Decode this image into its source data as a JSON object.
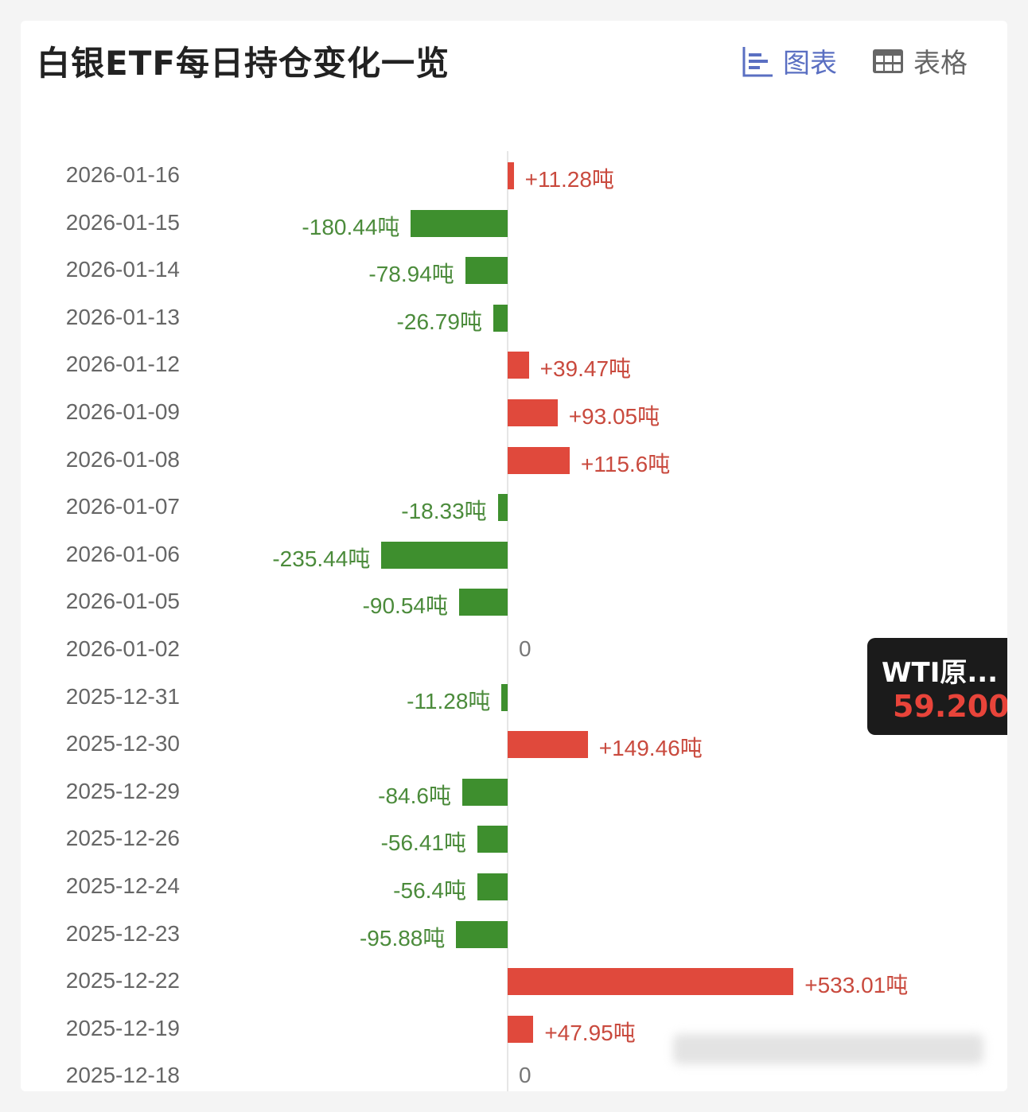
{
  "header": {
    "title": "白银ETF每日持仓变化一览",
    "tab_chart": "图表",
    "tab_table": "表格",
    "active_tab": "chart"
  },
  "tooltip": {
    "name": "WTI原...",
    "value": "59.200"
  },
  "colors": {
    "positive": "#e0493c",
    "negative": "#3e8f2e",
    "positive_text": "#c94a3e",
    "negative_text": "#4b8b3b",
    "accent": "#5a6fc2"
  },
  "chart_data": {
    "type": "bar",
    "orientation": "horizontal",
    "unit": "吨",
    "categories": [
      "2026-01-16",
      "2026-01-15",
      "2026-01-14",
      "2026-01-13",
      "2026-01-12",
      "2026-01-09",
      "2026-01-08",
      "2026-01-07",
      "2026-01-06",
      "2026-01-05",
      "2026-01-02",
      "2025-12-31",
      "2025-12-30",
      "2025-12-29",
      "2025-12-26",
      "2025-12-24",
      "2025-12-23",
      "2025-12-22",
      "2025-12-19",
      "2025-12-18"
    ],
    "values": [
      11.28,
      -180.44,
      -78.94,
      -26.79,
      39.47,
      93.05,
      115.6,
      -18.33,
      -235.44,
      -90.54,
      0,
      -11.28,
      149.46,
      -84.6,
      -56.41,
      -56.4,
      -95.88,
      533.01,
      47.95,
      0
    ],
    "labels": [
      "+11.28吨",
      "-180.44吨",
      "-78.94吨",
      "-26.79吨",
      "+39.47吨",
      "+93.05吨",
      "+115.6吨",
      "-18.33吨",
      "-235.44吨",
      "-90.54吨",
      "0",
      "-11.28吨",
      "+149.46吨",
      "-84.6吨",
      "-56.41吨",
      "-56.4吨",
      "-95.88吨",
      "+533.01吨",
      "+47.95吨",
      "0"
    ]
  }
}
